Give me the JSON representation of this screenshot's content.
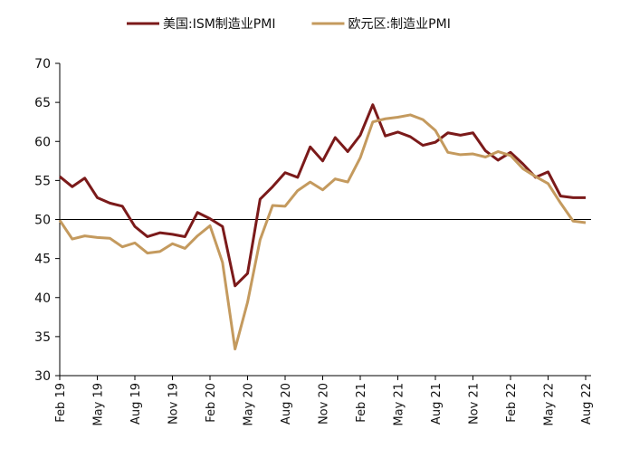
{
  "chart_data": {
    "type": "line",
    "categories": [
      "Feb 19",
      null,
      null,
      "May 19",
      null,
      null,
      "Aug 19",
      null,
      null,
      "Nov 19",
      null,
      null,
      "Feb 20",
      null,
      null,
      "May 20",
      null,
      null,
      "Aug 20",
      null,
      null,
      "Nov 20",
      null,
      null,
      "Feb 21",
      null,
      null,
      "May 21",
      null,
      null,
      "Aug 21",
      null,
      null,
      "Nov 21",
      null,
      null,
      "Feb 22",
      null,
      null,
      "May 22",
      null,
      null,
      "Aug 22"
    ],
    "series": [
      {
        "name": "美国:ISM制造业PMI",
        "color": "#7b1a1a",
        "values": [
          55.5,
          54.2,
          55.3,
          52.8,
          52.1,
          51.7,
          49.1,
          47.8,
          48.3,
          48.1,
          47.8,
          50.9,
          50.1,
          49.1,
          41.5,
          43.1,
          52.6,
          54.2,
          56.0,
          55.4,
          59.3,
          57.5,
          60.5,
          58.7,
          60.8,
          64.7,
          60.7,
          61.2,
          60.6,
          59.5,
          59.9,
          61.1,
          60.8,
          61.1,
          58.8,
          57.6,
          58.6,
          57.1,
          55.4,
          56.1,
          53.0,
          52.8,
          52.8
        ]
      },
      {
        "name": "欧元区:制造业PMI",
        "color": "#c49a5e",
        "values": [
          49.9,
          47.5,
          47.9,
          47.7,
          47.6,
          46.5,
          47.0,
          45.7,
          45.9,
          46.9,
          46.3,
          47.9,
          49.2,
          44.5,
          33.4,
          39.4,
          47.4,
          51.8,
          51.7,
          53.7,
          54.8,
          53.8,
          55.2,
          54.8,
          57.9,
          62.5,
          62.9,
          63.1,
          63.4,
          62.8,
          61.4,
          58.6,
          58.3,
          58.4,
          58.0,
          58.7,
          58.2,
          56.5,
          55.5,
          54.6,
          52.1,
          49.8,
          49.6
        ]
      }
    ],
    "ylim": [
      30,
      70
    ],
    "yticks": [
      30,
      35,
      40,
      45,
      50,
      55,
      60,
      65,
      70
    ],
    "reference_line": 50
  }
}
